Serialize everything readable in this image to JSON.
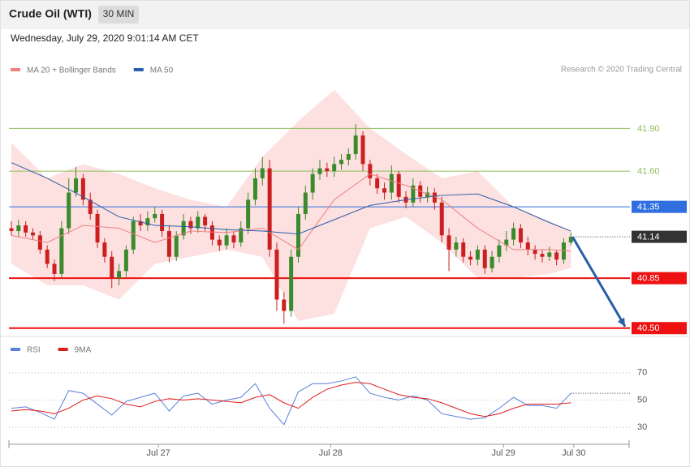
{
  "header": {
    "title": "Crude Oil (WTI)",
    "interval": "30 MIN",
    "timestamp": "Wednesday, July 29, 2020 9:01:14 AM CET"
  },
  "source": "Research © 2020 Trading Central",
  "chart_data": [
    {
      "type": "candlestick",
      "legend": [
        {
          "name": "MA 20 + Bollinger Bands",
          "color": "#f08080"
        },
        {
          "name": "MA 50",
          "color": "#2a5ea8"
        }
      ],
      "up_color": "#3b8a2b",
      "down_color": "#cc1f1f",
      "band_color": "#fde0e0",
      "xlim": [
        0,
        86
      ],
      "ylim": [
        40.47,
        42.26
      ],
      "open": [
        41.2,
        41.18,
        41.22,
        41.17,
        41.15,
        41.05,
        40.95,
        40.88,
        41.2,
        41.45,
        41.55,
        41.4,
        41.3,
        41.1,
        41.0,
        40.85,
        40.9,
        41.05,
        41.25,
        41.22,
        41.27,
        41.3,
        41.18,
        41.0,
        41.15,
        41.25,
        41.2,
        41.28,
        41.22,
        41.12,
        41.08,
        41.15,
        41.1,
        41.2,
        41.4,
        41.55,
        41.62,
        41.05,
        40.7,
        40.62,
        41.0,
        41.3,
        41.45,
        41.58,
        41.62,
        41.6,
        41.65,
        41.68,
        41.72,
        41.85,
        41.65,
        41.55,
        41.48,
        41.45,
        41.58,
        41.42,
        41.38,
        41.5,
        41.42,
        41.45,
        41.38,
        41.15,
        41.05,
        41.1,
        41.0,
        40.98,
        41.05,
        40.92,
        41.0,
        41.08,
        41.12,
        41.2,
        41.1,
        41.05,
        41.02,
        41.0,
        41.03,
        40.98,
        41.1
      ],
      "high": [
        41.25,
        41.26,
        41.25,
        41.2,
        41.18,
        41.08,
        40.98,
        41.25,
        41.55,
        41.63,
        41.58,
        41.45,
        41.33,
        41.13,
        41.04,
        40.95,
        41.08,
        41.28,
        41.3,
        41.32,
        41.35,
        41.33,
        41.22,
        41.18,
        41.3,
        41.28,
        41.32,
        41.3,
        41.25,
        41.15,
        41.2,
        41.18,
        41.25,
        41.45,
        41.62,
        41.7,
        41.68,
        41.1,
        40.75,
        41.05,
        41.35,
        41.5,
        41.62,
        41.68,
        41.66,
        41.7,
        41.72,
        41.76,
        41.93,
        41.88,
        41.68,
        41.58,
        41.52,
        41.64,
        41.6,
        41.46,
        41.55,
        41.53,
        41.49,
        41.48,
        41.42,
        41.2,
        41.14,
        41.13,
        41.04,
        41.08,
        41.08,
        41.04,
        41.12,
        41.18,
        41.24,
        41.23,
        41.14,
        41.08,
        41.05,
        41.07,
        41.05,
        41.13,
        41.17
      ],
      "low": [
        41.15,
        41.14,
        41.14,
        41.12,
        41.02,
        40.92,
        40.83,
        40.85,
        41.16,
        41.42,
        41.36,
        41.26,
        41.06,
        40.96,
        40.78,
        40.8,
        40.86,
        41.02,
        41.18,
        41.18,
        41.24,
        41.14,
        40.96,
        40.97,
        41.12,
        41.16,
        41.17,
        41.18,
        41.08,
        41.04,
        41.05,
        41.06,
        41.07,
        41.16,
        41.36,
        41.5,
        41.0,
        40.62,
        40.53,
        40.58,
        40.96,
        41.26,
        41.4,
        41.54,
        41.56,
        41.56,
        41.61,
        41.64,
        41.68,
        41.6,
        41.5,
        41.44,
        41.4,
        41.4,
        41.38,
        41.34,
        41.35,
        41.38,
        41.38,
        41.33,
        41.1,
        40.9,
        41.0,
        40.96,
        40.94,
        40.94,
        40.88,
        40.89,
        40.96,
        41.04,
        41.08,
        41.06,
        41.01,
        40.98,
        40.96,
        40.97,
        40.94,
        40.95,
        41.08
      ],
      "close": [
        41.18,
        41.22,
        41.17,
        41.15,
        41.05,
        40.95,
        40.88,
        41.2,
        41.45,
        41.55,
        41.4,
        41.3,
        41.1,
        41.0,
        40.85,
        40.9,
        41.05,
        41.25,
        41.22,
        41.27,
        41.3,
        41.18,
        41.0,
        41.15,
        41.25,
        41.2,
        41.28,
        41.22,
        41.12,
        41.08,
        41.15,
        41.1,
        41.2,
        41.4,
        41.55,
        41.62,
        41.05,
        40.7,
        40.62,
        41.0,
        41.3,
        41.45,
        41.58,
        41.62,
        41.6,
        41.65,
        41.68,
        41.72,
        41.85,
        41.65,
        41.55,
        41.48,
        41.45,
        41.58,
        41.42,
        41.38,
        41.5,
        41.42,
        41.45,
        41.38,
        41.15,
        41.05,
        41.1,
        41.0,
        40.98,
        41.05,
        40.92,
        41.0,
        41.08,
        41.12,
        41.2,
        41.1,
        41.05,
        41.02,
        41.0,
        41.03,
        40.98,
        41.1,
        41.14
      ],
      "overlay_x": [
        0,
        5,
        10,
        15,
        20,
        25,
        30,
        35,
        40,
        45,
        50,
        55,
        60,
        65,
        70,
        75,
        78
      ],
      "ma20": [
        41.15,
        41.1,
        41.22,
        41.2,
        41.1,
        41.18,
        41.17,
        41.2,
        41.05,
        41.4,
        41.58,
        41.5,
        41.4,
        41.2,
        41.05,
        41.05,
        41.04
      ],
      "ma50": [
        41.66,
        41.55,
        41.42,
        41.28,
        41.22,
        41.21,
        41.19,
        41.18,
        41.16,
        41.26,
        41.36,
        41.4,
        41.43,
        41.44,
        41.35,
        41.24,
        41.18
      ],
      "bb_upper": [
        41.8,
        41.55,
        41.65,
        41.58,
        41.48,
        41.4,
        41.35,
        41.7,
        41.95,
        42.17,
        41.9,
        41.72,
        41.55,
        41.6,
        41.35,
        41.25,
        41.18
      ],
      "bb_lower": [
        40.95,
        40.8,
        40.8,
        40.7,
        40.95,
        41.0,
        41.05,
        41.0,
        40.55,
        40.6,
        41.2,
        41.28,
        41.1,
        40.85,
        40.85,
        40.88,
        40.92
      ],
      "levels": [
        {
          "value": 41.9,
          "label": "41.90",
          "color": "#8fbf5a",
          "boxed": false
        },
        {
          "value": 41.6,
          "label": "41.60",
          "color": "#8fbf5a",
          "boxed": false
        },
        {
          "value": 41.35,
          "color": "#2f6fe0",
          "boxed": true
        },
        {
          "value": 41.14,
          "color": "#333333",
          "boxed": true,
          "dotted": true
        },
        {
          "value": 40.85,
          "color": "#ee1111",
          "boxed": true
        },
        {
          "value": 40.5,
          "label": "40.50",
          "color": "#ee1111",
          "boxed": true
        }
      ],
      "forecast_arrow": {
        "from": 41.14,
        "to": 40.5,
        "color": "#2a5ea8"
      }
    },
    {
      "type": "line",
      "xlim": [
        0,
        86
      ],
      "ylim": [
        20,
        80
      ],
      "yticks": [
        30,
        50,
        70
      ],
      "xticks": [
        {
          "value": 20.5,
          "label": "Jul 27"
        },
        {
          "value": 44.5,
          "label": "Jul 28"
        },
        {
          "value": 68.6,
          "label": "Jul 29"
        },
        {
          "value": 78.4,
          "label": "Jul 30"
        }
      ],
      "x": [
        0,
        2,
        4,
        6,
        8,
        10,
        12,
        14,
        16,
        18,
        20,
        22,
        24,
        26,
        28,
        30,
        32,
        34,
        36,
        38,
        40,
        42,
        44,
        46,
        48,
        50,
        52,
        54,
        56,
        58,
        60,
        62,
        64,
        66,
        68,
        70,
        72,
        74,
        76,
        78
      ],
      "series": [
        {
          "name": "RSI",
          "color": "#5b7fdb",
          "values": [
            44,
            45,
            41,
            36,
            57,
            55,
            47,
            39,
            49,
            52,
            55,
            42,
            53,
            55,
            47,
            50,
            52,
            62,
            44,
            32,
            56,
            62,
            62,
            64,
            67,
            55,
            52,
            50,
            53,
            50,
            40,
            38,
            36,
            37,
            44,
            52,
            46,
            46,
            44,
            55
          ]
        },
        {
          "name": "9MA",
          "color": "#e01b1b",
          "values": [
            42,
            43,
            42,
            40,
            44,
            50,
            53,
            51,
            47,
            45,
            49,
            51,
            50,
            51,
            50,
            49,
            48,
            52,
            54,
            48,
            44,
            52,
            58,
            61,
            63,
            62,
            58,
            54,
            52,
            51,
            48,
            44,
            40,
            38,
            40,
            44,
            47,
            47,
            47,
            48
          ]
        }
      ]
    }
  ]
}
